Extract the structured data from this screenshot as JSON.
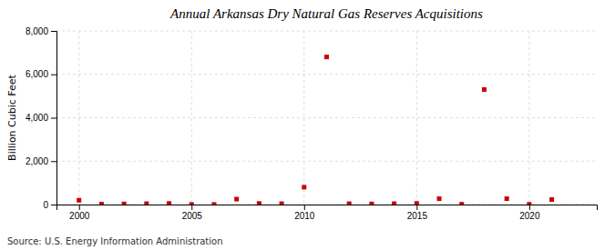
{
  "chart_data": {
    "type": "scatter",
    "title": "Annual Arkansas Dry Natural Gas Reserves Acquisitions",
    "ylabel": "Billion Cubic Feet",
    "source": "Source: U.S. Energy Information Administration",
    "x": [
      2000,
      2001,
      2002,
      2003,
      2004,
      2005,
      2006,
      2007,
      2008,
      2009,
      2010,
      2011,
      2012,
      2013,
      2014,
      2015,
      2016,
      2017,
      2018,
      2019,
      2020,
      2021
    ],
    "values": [
      200,
      20,
      30,
      40,
      50,
      5,
      5,
      250,
      50,
      40,
      800,
      6800,
      40,
      30,
      40,
      50,
      270,
      15,
      5300,
      270,
      10,
      230
    ],
    "color": "#cc0000",
    "marker": "square",
    "xlim": [
      1999,
      2023
    ],
    "xticks": [
      2000,
      2005,
      2010,
      2015,
      2020
    ],
    "ylim": [
      0,
      8000
    ],
    "yticks": [
      0,
      {
        "value": 2000,
        "label": "2,000"
      },
      {
        "value": 4000,
        "label": "4,000"
      },
      {
        "value": 6000,
        "label": "6,000"
      },
      {
        "value": 8000,
        "label": "8,000"
      }
    ],
    "grid": true
  }
}
